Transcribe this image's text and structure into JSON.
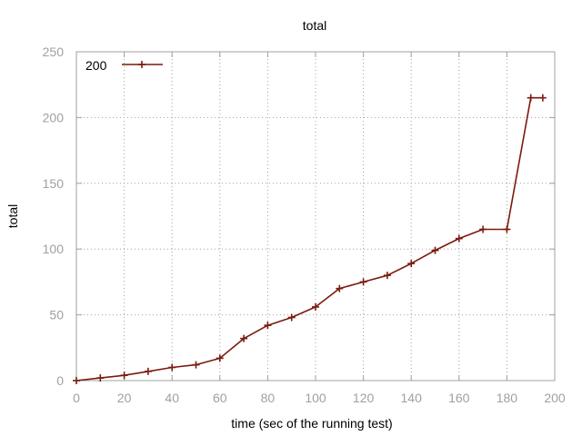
{
  "chart_data": {
    "type": "line",
    "title": "total",
    "xlabel": "time (sec of the running test)",
    "ylabel": "total",
    "xlim": [
      0,
      200
    ],
    "ylim": [
      0,
      250
    ],
    "x_ticks": [
      0,
      20,
      40,
      60,
      80,
      100,
      120,
      140,
      160,
      180,
      200
    ],
    "y_ticks": [
      0,
      50,
      100,
      150,
      200,
      250
    ],
    "grid": true,
    "legend_position": "top-left",
    "series": [
      {
        "name": "200",
        "color": "#7a1a0e",
        "marker": "plus",
        "x": [
          0,
          10,
          20,
          30,
          40,
          50,
          60,
          70,
          80,
          90,
          100,
          110,
          120,
          130,
          140,
          150,
          160,
          170,
          180,
          190,
          195
        ],
        "y": [
          0,
          2,
          4,
          7,
          10,
          12,
          17,
          32,
          42,
          48,
          56,
          70,
          75,
          80,
          89,
          99,
          108,
          115,
          115,
          215,
          215
        ]
      }
    ]
  }
}
